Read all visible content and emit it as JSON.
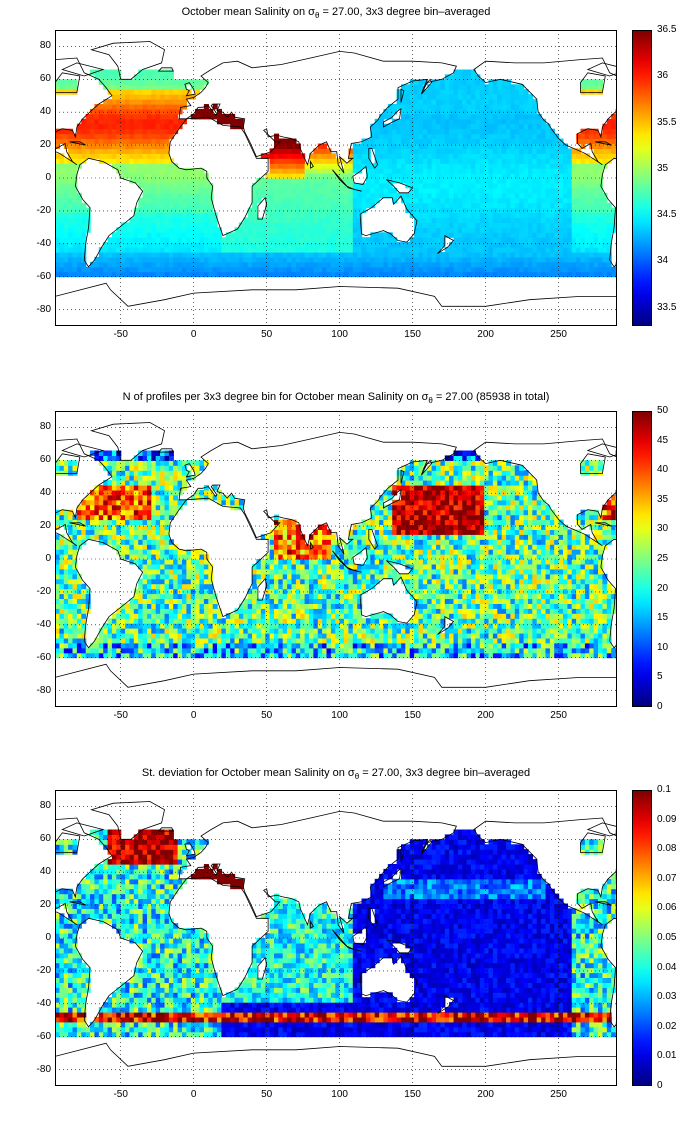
{
  "panels": [
    {
      "id": "mean",
      "title_pre": "October mean Salinity on σ",
      "title_sub": "θ",
      "title_post": " = 27.00, 3x3 degree bin–averaged",
      "colorbar": {
        "min": 33.3,
        "max": 36.5,
        "ticks": [
          "33.5",
          "34",
          "34.5",
          "35",
          "35.5",
          "36",
          "36.5"
        ],
        "tick_values": [
          33.5,
          34,
          34.5,
          35,
          35.5,
          36,
          36.5
        ]
      }
    },
    {
      "id": "count",
      "title_pre": "N of profiles per 3x3 degree bin for October mean Salinity on σ",
      "title_sub": "θ",
      "title_post": " = 27.00 (85938 in total)",
      "colorbar": {
        "min": 0,
        "max": 50,
        "ticks": [
          "0",
          "5",
          "10",
          "15",
          "20",
          "25",
          "30",
          "35",
          "40",
          "45",
          "50"
        ],
        "tick_values": [
          0,
          5,
          10,
          15,
          20,
          25,
          30,
          35,
          40,
          45,
          50
        ]
      }
    },
    {
      "id": "std",
      "title_pre": "St. deviation for October mean Salinity on σ",
      "title_sub": "θ",
      "title_post": " = 27.00, 3x3 degree bin–averaged",
      "colorbar": {
        "min": 0,
        "max": 0.1,
        "ticks": [
          "0",
          "0.01",
          "0.02",
          "0.03",
          "0.04",
          "0.05",
          "0.06",
          "0.07",
          "0.08",
          "0.09",
          "0.1"
        ],
        "tick_values": [
          0,
          0.01,
          0.02,
          0.03,
          0.04,
          0.05,
          0.06,
          0.07,
          0.08,
          0.09,
          0.1
        ]
      }
    }
  ],
  "axes": {
    "xlim": [
      -95,
      290
    ],
    "ylim": [
      -90,
      90
    ],
    "xticks": [
      "-50",
      "0",
      "50",
      "100",
      "150",
      "200",
      "250"
    ],
    "xtick_values": [
      -50,
      0,
      50,
      100,
      150,
      200,
      250
    ],
    "yticks": [
      "80",
      "60",
      "40",
      "20",
      "0",
      "-20",
      "-40",
      "-60",
      "-80"
    ],
    "ytick_values": [
      80,
      60,
      40,
      20,
      0,
      -20,
      -40,
      -60,
      -80
    ],
    "grid": true,
    "grid_style": "dotted",
    "colormap": "jet"
  }
}
